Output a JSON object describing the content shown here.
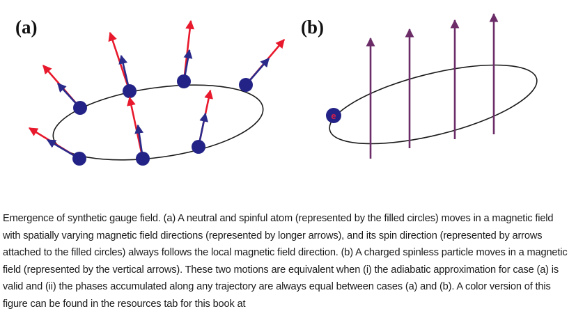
{
  "figure": {
    "panel_a_label": "(a)",
    "panel_b_label": "(b)",
    "electron_label": "e",
    "colors": {
      "field_arrow": "#e8192c",
      "spin_arrow": "#2a2a8a",
      "atom": "#232387",
      "vertical_arrow": "#6b2c68",
      "orbit": "#1a1a1a"
    }
  },
  "caption": {
    "text": "Emergence of synthetic gauge field. (a) A neutral and spinful atom (represented by the filled circles) moves in a magnetic field with spatially varying magnetic field directions (represented by longer arrows), and its spin direction (represented by arrows attached to the filled circles) always follows the local magnetic field direction. (b) A charged spinless particle moves in a magnetic field (represented by the vertical arrows). These two motions are equivalent when (i) the adiabatic approximation for case (a) is valid and (ii) the phases accumulated along any trajectory are always equal between cases (a) and (b). A color version of this figure can be found in the resources tab for this book at"
  }
}
